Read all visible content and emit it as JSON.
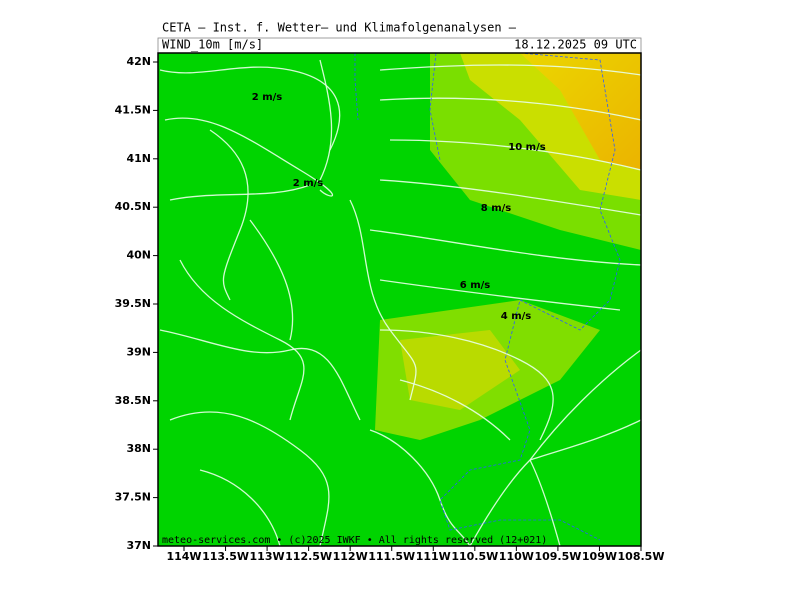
{
  "header": {
    "title": "CETA — Inst. f. Wetter— und Klimafolgenanalysen —",
    "field": "WIND_10m [m/s]",
    "valid_time": "18.12.2025 09 UTC"
  },
  "map": {
    "lat_labels": [
      "42N",
      "41.5N",
      "41N",
      "40.5N",
      "40N",
      "39.5N",
      "39N",
      "38.5N",
      "38N",
      "37.5N",
      "37N"
    ],
    "lon_labels": [
      "114W",
      "113.5W",
      "113W",
      "112.5W",
      "112W",
      "111.5W",
      "111W",
      "110.5W",
      "110W",
      "109.5W",
      "109W",
      "108.5W"
    ],
    "speed_labels": [
      "2 m/s",
      "2 m/s",
      "10 m/s",
      "8 m/s",
      "6 m/s",
      "4 m/s"
    ]
  },
  "footer": {
    "credit": "meteo-services.com • (c)2025 IWKF • All rights reserved (12+021)"
  }
}
